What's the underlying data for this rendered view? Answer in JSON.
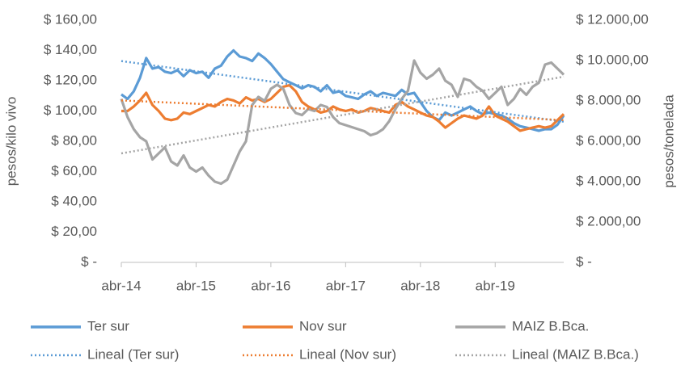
{
  "chart_data": {
    "type": "line",
    "y_label": "pesos/kilo vivo",
    "y2_label": "pesos/tonelada",
    "categories": [
      "abr-14",
      null,
      null,
      null,
      null,
      null,
      null,
      null,
      null,
      null,
      null,
      null,
      "abr-15",
      null,
      null,
      null,
      null,
      null,
      null,
      null,
      null,
      null,
      null,
      null,
      "abr-16",
      null,
      null,
      null,
      null,
      null,
      null,
      null,
      null,
      null,
      null,
      null,
      "abr-17",
      null,
      null,
      null,
      null,
      null,
      null,
      null,
      null,
      null,
      null,
      null,
      "abr-18",
      null,
      null,
      null,
      null,
      null,
      null,
      null,
      null,
      null,
      null,
      null,
      "abr-19",
      null,
      null,
      null,
      null,
      null,
      null,
      null,
      null,
      null,
      null,
      null
    ],
    "ylim": [
      0,
      160
    ],
    "yticks": [
      {
        "value": 0,
        "label": "$ -"
      },
      {
        "value": 20,
        "label": "$ 20,00"
      },
      {
        "value": 40,
        "label": "$ 40,00"
      },
      {
        "value": 60,
        "label": "$ 60,00"
      },
      {
        "value": 80,
        "label": "$ 80,00"
      },
      {
        "value": 100,
        "label": "$ 100,00"
      },
      {
        "value": 120,
        "label": "$ 120,00"
      },
      {
        "value": 140,
        "label": "$ 140,00"
      },
      {
        "value": 160,
        "label": "$ 160,00"
      }
    ],
    "y2lim": [
      0,
      12000
    ],
    "y2ticks": [
      {
        "value": 0,
        "label": "$ -"
      },
      {
        "value": 2000,
        "label": "$ 2.000,00"
      },
      {
        "value": 4000,
        "label": "$ 4.000,00"
      },
      {
        "value": 6000,
        "label": "$ 6.000,00"
      },
      {
        "value": 8000,
        "label": "$ 8.000,00"
      },
      {
        "value": 10000,
        "label": "$ 10.000,00"
      },
      {
        "value": 12000,
        "label": "$ 12.000,00"
      }
    ],
    "grid": false,
    "series": [
      {
        "name": "Ter sur",
        "color": "#5b9bd5",
        "values": [
          111,
          108,
          113,
          122,
          135,
          128,
          129,
          126,
          125,
          127,
          123,
          127,
          125,
          126,
          122,
          128,
          130,
          136,
          140,
          136,
          135,
          133,
          138,
          135,
          131,
          126,
          121,
          119,
          117,
          115,
          117,
          116,
          113,
          117,
          112,
          113,
          110,
          109,
          108,
          111,
          113,
          110,
          112,
          111,
          110,
          114,
          111,
          112,
          106,
          100,
          96,
          94,
          99,
          97,
          99,
          101,
          103,
          100,
          98,
          99,
          98,
          97,
          95,
          92,
          90,
          89,
          88,
          87,
          88,
          88,
          91,
          97
        ]
      },
      {
        "name": "Nov sur",
        "color": "#ed7d31",
        "values": [
          100,
          100,
          103,
          107,
          112,
          104,
          100,
          95,
          94,
          95,
          99,
          98,
          100,
          102,
          104,
          103,
          106,
          108,
          107,
          105,
          109,
          107,
          108,
          106,
          108,
          112,
          116,
          117,
          113,
          106,
          103,
          101,
          99,
          100,
          103,
          101,
          100,
          101,
          99,
          100,
          102,
          101,
          100,
          99,
          104,
          106,
          103,
          101,
          99,
          97,
          96,
          93,
          89,
          92,
          95,
          97,
          96,
          95,
          97,
          103,
          97,
          95,
          93,
          90,
          87,
          88,
          89,
          90,
          89,
          90,
          94,
          98
        ]
      },
      {
        "name": "MAIZ B.Bca.",
        "color": "#a5a5a5",
        "axis": "y2",
        "values": [
          8100,
          7200,
          6600,
          6200,
          6000,
          5100,
          5400,
          5700,
          5000,
          4800,
          5300,
          4700,
          4500,
          4700,
          4300,
          4000,
          3900,
          4100,
          4800,
          5500,
          6000,
          7800,
          8200,
          8000,
          8600,
          8800,
          8600,
          7800,
          7400,
          7300,
          7600,
          7500,
          7800,
          7700,
          7200,
          6900,
          6800,
          6700,
          6600,
          6500,
          6300,
          6400,
          6600,
          7000,
          7600,
          8100,
          8500,
          10000,
          9400,
          9100,
          9300,
          9600,
          9000,
          8800,
          8200,
          9100,
          9000,
          8700,
          8500,
          8100,
          8400,
          8700,
          7800,
          8100,
          8600,
          8300,
          8700,
          8900,
          9800,
          9900,
          9600,
          9300
        ]
      }
    ],
    "trendlines": [
      {
        "name": "Lineal (Ter sur)",
        "color": "#5b9bd5",
        "values": [
          133,
          93
        ]
      },
      {
        "name": "Lineal (Nov sur)",
        "color": "#ed7d31",
        "values": [
          107,
          94
        ]
      },
      {
        "name": "Lineal (MAIZ B.Bca.)",
        "color": "#a5a5a5",
        "axis": "y2",
        "values": [
          5400,
          9200
        ]
      }
    ]
  }
}
